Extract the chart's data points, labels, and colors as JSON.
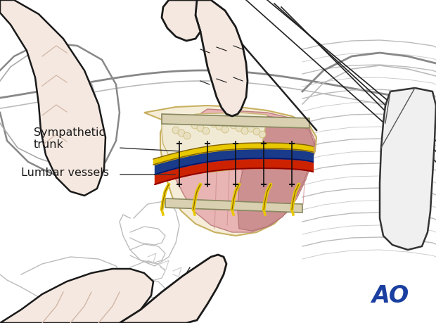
{
  "background_color": "#ffffff",
  "ao_text": "AO",
  "ao_color": "#1a3fa0",
  "ao_fontsize": 24,
  "label_sympathetic": "Sympathetic\ntrunk",
  "label_lumbar": "Lumbar vessels",
  "label_fontsize": 11.5,
  "label_color": "#1a1a1a",
  "vessel_red_color": "#cc2200",
  "vessel_blue_color": "#1a3a8a",
  "vessel_yellow_color": "#e8c800",
  "hand_fill_color": "#f5e8e0",
  "hand_outline_color": "#1a1a1a",
  "bone_fill_color": "#f5edd8",
  "muscle_fill_color": "#e8b4b4",
  "muscle_dark_color": "#cc9090",
  "figsize": [
    6.2,
    4.59
  ],
  "dpi": 100
}
